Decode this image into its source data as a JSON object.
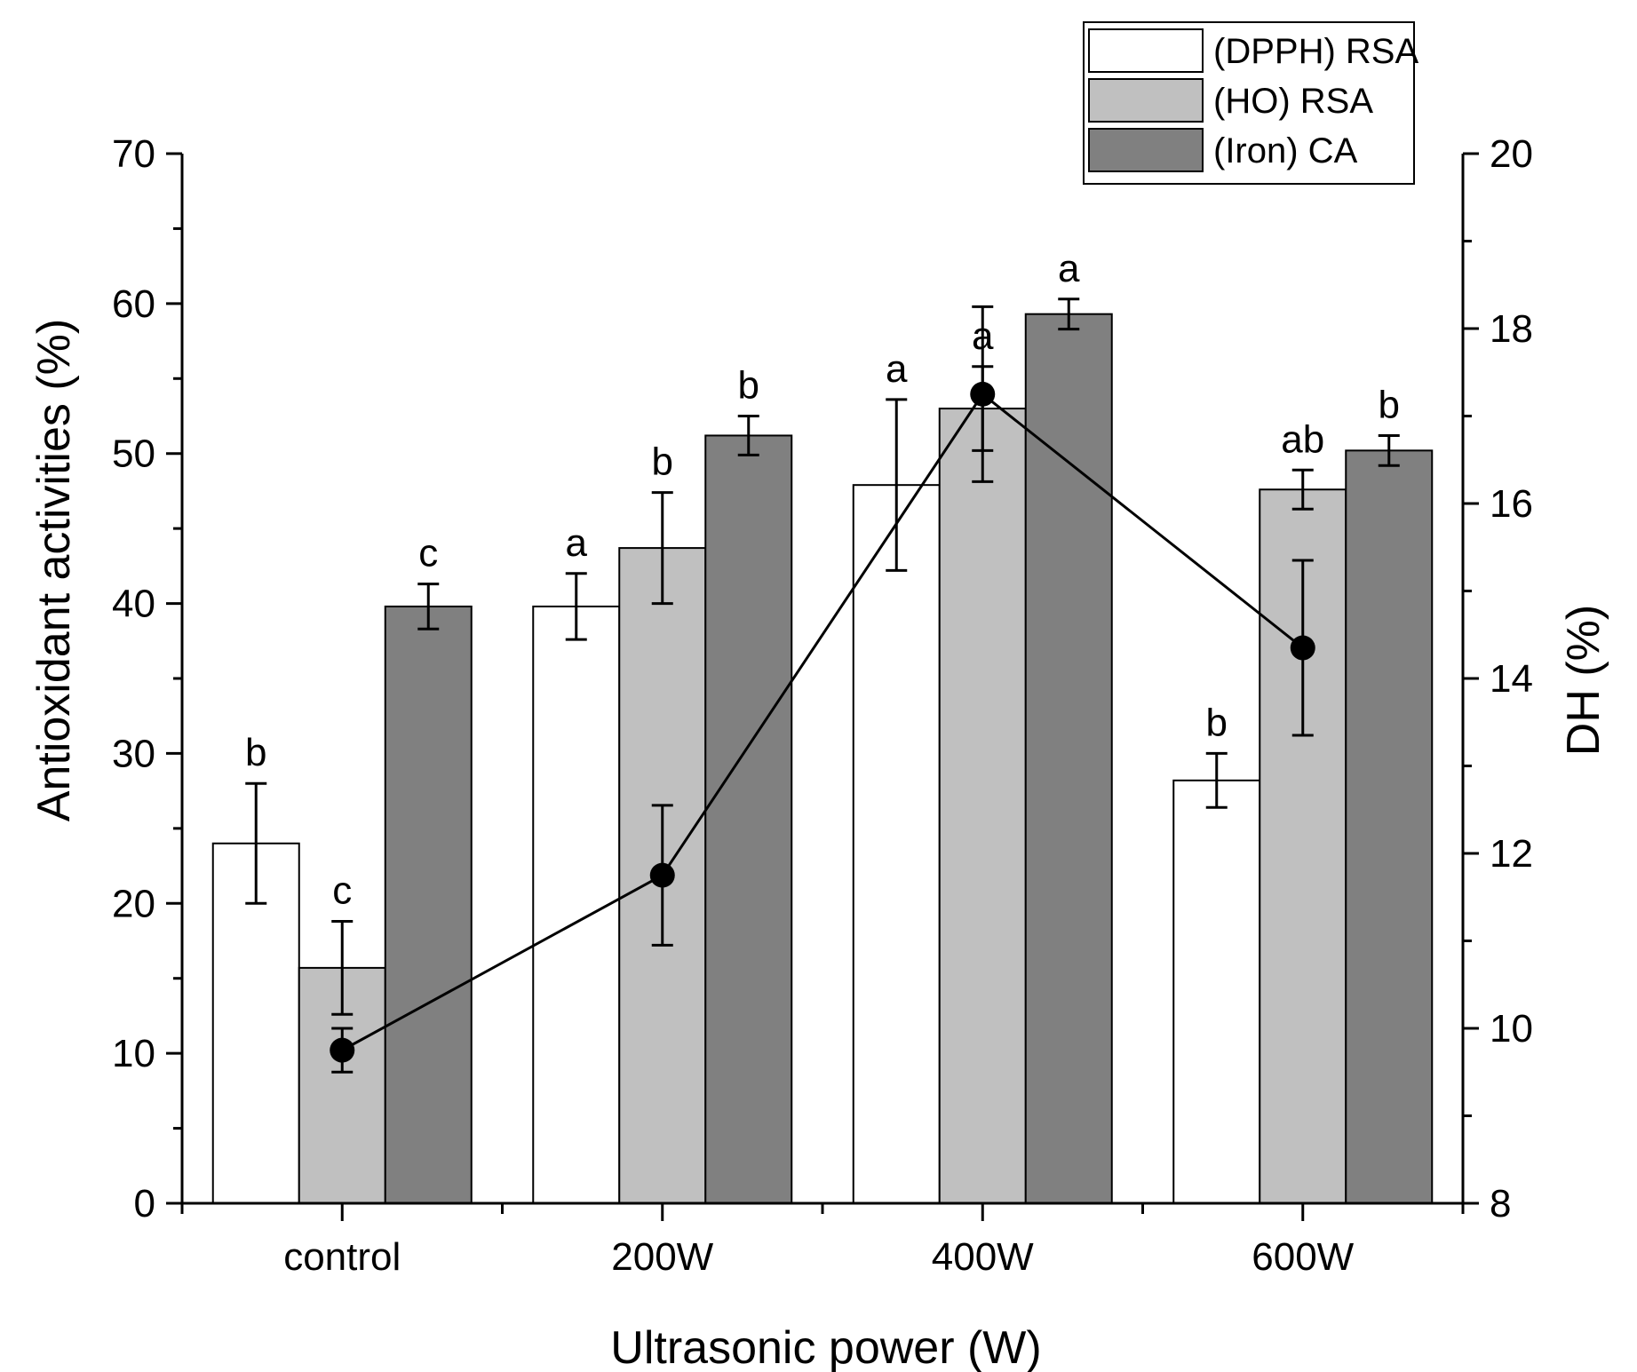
{
  "chart_data": {
    "type": "bar",
    "xlabel": "Ultrasonic power (W)",
    "ylabel": "Antioxidant activities (%)",
    "y2label": "DH (%)",
    "ylim": [
      0,
      70
    ],
    "y2lim": [
      8,
      20
    ],
    "yticks": [
      "0",
      "10",
      "20",
      "30",
      "40",
      "50",
      "60",
      "70"
    ],
    "y2ticks": [
      "8",
      "10",
      "12",
      "14",
      "16",
      "18",
      "20"
    ],
    "categories": [
      "control",
      "200W",
      "400W",
      "600W"
    ],
    "series": [
      {
        "name": "(DPPH) RSA",
        "color": "#ffffff",
        "values": [
          24.0,
          39.8,
          47.9,
          28.2
        ],
        "errors": [
          4.0,
          2.2,
          5.7,
          1.8
        ],
        "letters": [
          "b",
          "a",
          "a",
          "b"
        ]
      },
      {
        "name": "(HO) RSA",
        "color": "#c0c0c0",
        "values": [
          15.7,
          43.7,
          53.0,
          47.6
        ],
        "errors": [
          3.1,
          3.7,
          2.8,
          1.3
        ],
        "letters": [
          "c",
          "b",
          "a",
          "ab"
        ]
      },
      {
        "name": "(Iron) CA",
        "color": "#808080",
        "values": [
          39.8,
          51.2,
          59.3,
          50.2
        ],
        "errors": [
          1.5,
          1.3,
          1.0,
          1.0
        ],
        "letters": [
          "c",
          "b",
          "a",
          "b"
        ]
      }
    ],
    "line": {
      "name": "DH",
      "axis": "right",
      "values": [
        9.75,
        11.75,
        17.25,
        14.35
      ],
      "errors": [
        0.25,
        0.8,
        1.0,
        1.0
      ]
    },
    "legend": "top-right"
  }
}
